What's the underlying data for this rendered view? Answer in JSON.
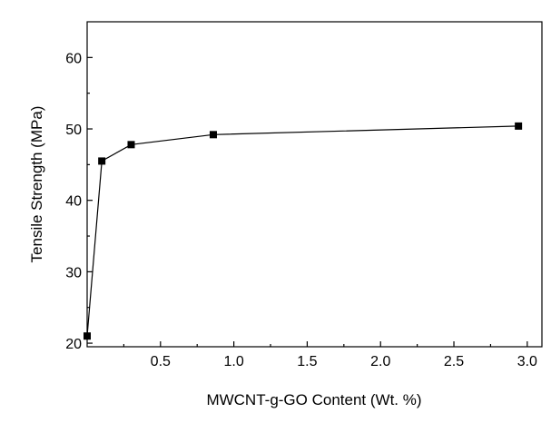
{
  "chart_data": {
    "type": "line",
    "title": "",
    "xlabel": "MWCNT-g-GO Content (Wt. %)",
    "ylabel": "Tensile Strength (MPa)",
    "xlim": [
      0.0,
      3.1
    ],
    "ylim": [
      19.5,
      65.0
    ],
    "x_ticks": [
      0.5,
      1.0,
      1.5,
      2.0,
      2.5,
      3.0
    ],
    "x_tick_labels": [
      "0.5",
      "1.0",
      "1.5",
      "2.0",
      "2.5",
      "3.0"
    ],
    "y_ticks": [
      20,
      30,
      40,
      50,
      60
    ],
    "y_tick_labels": [
      "20",
      "30",
      "40",
      "50",
      "60"
    ],
    "grid": false,
    "legend": false,
    "marker": "square",
    "line_color": "#000000",
    "marker_color": "#000000",
    "series": [
      {
        "x": [
          0.0,
          0.1,
          0.3,
          0.86,
          2.94
        ],
        "y": [
          21.0,
          45.5,
          47.8,
          49.2,
          50.4
        ]
      }
    ]
  }
}
